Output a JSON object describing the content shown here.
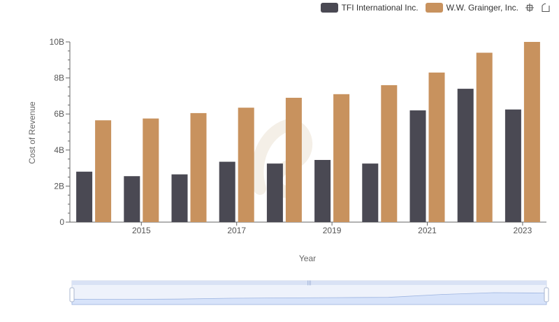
{
  "chart_data": {
    "type": "bar",
    "categories": [
      "2014",
      "2015",
      "2016",
      "2017",
      "2018",
      "2019",
      "2020",
      "2021",
      "2022",
      "2023"
    ],
    "series": [
      {
        "name": "TFI International Inc.",
        "color": "#4a4953",
        "values": [
          2.8,
          2.55,
          2.65,
          3.35,
          3.25,
          3.45,
          3.25,
          6.2,
          7.4,
          6.25
        ]
      },
      {
        "name": "W.W. Grainger, Inc.",
        "color": "#c8925e",
        "values": [
          5.65,
          5.75,
          6.05,
          6.35,
          6.9,
          7.1,
          7.6,
          8.3,
          9.4,
          10.0
        ]
      }
    ],
    "xlabel": "Year",
    "ylabel": "Cost of Revenue",
    "ylim": [
      0,
      10
    ],
    "yticks": [
      0,
      2,
      4,
      6,
      8,
      10
    ],
    "ytick_labels": [
      "0",
      "2B",
      "4B",
      "6B",
      "8B",
      "10B"
    ],
    "xtick_labels": [
      "2015",
      "2017",
      "2019",
      "2021",
      "2023"
    ],
    "legend_position": "top-right",
    "grid": false
  },
  "toolbox": {
    "restore_icon": "restore-icon",
    "save_icon": "save-as-image-icon"
  },
  "datazoom": {
    "fill_color": "#d7e3fa",
    "border_color": "#d0d8e8"
  }
}
